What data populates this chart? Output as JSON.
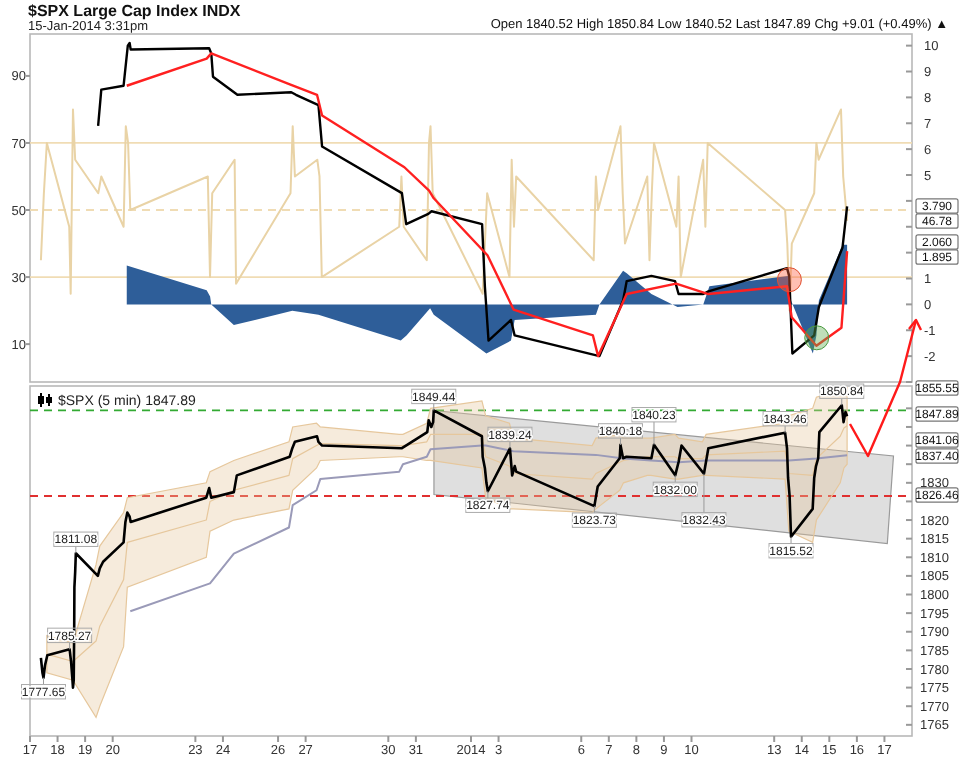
{
  "chart_data": [
    {
      "type": "line",
      "title": "$SPX Large Cap Index INDX",
      "subtitle": "15-Jan-2014 3:31pm",
      "annotations": [
        "Open 1840.52 High 1850.84 Low 1840.52 Last 1847.89 Chg +9.01 (+0.49%) ▲",
        "3.790",
        "46.78",
        "2.060",
        "1.895"
      ],
      "xlim": [
        "2013-12-17",
        "2014-01-18"
      ],
      "ylim": [
        -1.3,
        102.5
      ],
      "yticks": [
        10,
        30,
        50,
        70,
        90
      ],
      "y2lim": [
        -3.0,
        10.45
      ],
      "y2ticks": [
        {
          "value": -3,
          "label": null
        },
        -2,
        -1,
        0,
        1,
        {
          "value": 2,
          "label": null
        },
        {
          "value": 3,
          "label": null
        },
        {
          "value": 4,
          "label": null
        },
        5,
        6,
        7,
        8,
        9,
        10
      ],
      "tick_labels": "y",
      "ref_lines": [
        {
          "axis": "y",
          "value": 70,
          "color": "#f0dcb4"
        },
        {
          "axis": "y",
          "value": 30,
          "color": "#f0dcb4"
        },
        {
          "axis": "y",
          "value": 50,
          "color": "#f0dcb4",
          "line_style": "dashed"
        }
      ],
      "series": [
        {
          "color": "#e9d3a6",
          "x": [
            "2013-12-17T09:30",
            "2013-12-17T12:05",
            "2013-12-17T14:40",
            "2013-12-18T10:10",
            "2013-12-18T11:25",
            "2013-12-18T13:25",
            "2013-12-18T15:20",
            "2013-12-19T11:25",
            "2013-12-19T14:05",
            "2013-12-20T09:30",
            "2013-12-20T11:25",
            "2013-12-20T13:25",
            "2013-12-20T15:20",
            "2013-12-23T10:50",
            "2013-12-23T12:45",
            "2013-12-23T14:40",
            "2013-12-24T10:10",
            "2013-12-24T11:25",
            "2013-12-26T10:50",
            "2013-12-26T12:45",
            "2013-12-26T14:40",
            "2013-12-27T10:10",
            "2013-12-27T12:05",
            "2013-12-27T14:05",
            "2013-12-30T09:30",
            "2013-12-30T11:25",
            "2013-12-30T13:25",
            "2013-12-31T09:30",
            "2013-12-31T11:25",
            "2013-12-31T12:45",
            "2013-12-31T14:40",
            "2014-01-02T10:10",
            "2014-01-02T12:05",
            "2014-01-02T14:05",
            "2014-01-03T09:30",
            "2014-01-03T11:25",
            "2014-01-03T13:25",
            "2014-01-03T15:20",
            "2014-01-06T10:50",
            "2014-01-06T12:45",
            "2014-01-06T14:40",
            "2014-01-07T10:10",
            "2014-01-07T12:05",
            "2014-01-07T14:05",
            "2014-01-08T09:30",
            "2014-01-08T11:25",
            "2014-01-08T13:25",
            "2014-01-08T15:20",
            "2014-01-09T10:50",
            "2014-01-09T12:45",
            "2014-01-09T14:40",
            "2014-01-10T10:10",
            "2014-01-10T12:05",
            "2014-01-10T14:05",
            "2014-01-13T09:30",
            "2014-01-13T11:25",
            "2014-01-13T13:25",
            "2014-01-13T15:20",
            "2014-01-14T10:50",
            "2014-01-14T12:45",
            "2014-01-14T14:40",
            "2014-01-15T10:10",
            "2014-01-15T12:05",
            "2014-01-15T15:30"
          ],
          "values": [
            35,
            55,
            70,
            45,
            25,
            80,
            65,
            55,
            60,
            45,
            75,
            70,
            50,
            60,
            30,
            55,
            65,
            28,
            55,
            75,
            60,
            65,
            60,
            30,
            45,
            60,
            45,
            35,
            70,
            75,
            55,
            25,
            40,
            55,
            30,
            65,
            45,
            60,
            35,
            60,
            50,
            75,
            55,
            40,
            60,
            35,
            55,
            70,
            45,
            60,
            30,
            65,
            45,
            70,
            50,
            40,
            20,
            40,
            55,
            70,
            65,
            80,
            60,
            46.78
          ]
        },
        {
          "type": "area",
          "axis": "y2",
          "color": "#2e5e99",
          "x": [
            "2013-12-20T12:15",
            "2013-12-20T12:15",
            "2013-12-23T09:50",
            "2013-12-23T12:50",
            "2013-12-23T13:50",
            "2013-12-24T09:30",
            "2013-12-26T12:25",
            "2013-12-27T11:10",
            "2013-12-30T10:50",
            "2013-12-30T15:50",
            "2013-12-31T12:25",
            "2013-12-31T15:35",
            "2014-01-02T13:25",
            "2014-01-03T10:50",
            "2014-01-03T14:00",
            "2014-01-06T12:45",
            "2014-01-06T15:50",
            "2014-01-07T12:25",
            "2014-01-07T15:35",
            "2014-01-08T13:05",
            "2014-01-09T11:50",
            "2014-01-10T10:15",
            "2014-01-10T15:35",
            "2014-01-13T12:05",
            "2014-01-13T14:40",
            "2014-01-14T09:40",
            "2014-01-14T12:45",
            "2014-01-14T14:55",
            "2014-01-15T11:30",
            "2014-01-15T15:30"
          ],
          "values": [
            0,
            1.5,
            0.55,
            0.3,
            0,
            -0.8,
            -0.25,
            -0.4,
            -1.4,
            -1.2,
            -0.15,
            -0.4,
            -1.9,
            -1.4,
            -0.6,
            -0.4,
            0,
            1.3,
            1.2,
            0.4,
            -0.1,
            0,
            0.7,
            1.1,
            0.15,
            -1.9,
            -1.2,
            0.15,
            2.3,
            2.3
          ]
        },
        {
          "axis": "y2",
          "color": "#000000",
          "x": [
            "2013-12-19T11:20",
            "2013-12-19T14:05",
            "2013-12-20T09:30",
            "2013-12-20T13:10",
            "2013-12-20T14:45",
            "2013-12-20T15:40",
            "2013-12-23T12:00",
            "2013-12-23T13:50",
            "2013-12-23T15:20",
            "2013-12-24T12:35",
            "2013-12-26T11:30",
            "2013-12-26T15:35",
            "2013-12-27T11:10",
            "2013-12-27T14:20",
            "2013-12-30T11:50",
            "2013-12-30T15:35",
            "2013-12-31T10:50",
            "2013-12-31T13:40",
            "2014-01-02T09:40",
            "2014-01-02T12:05",
            "2014-01-02T15:15",
            "2014-01-03T10:50",
            "2014-01-03T14:00",
            "2014-01-06T15:50",
            "2014-01-07T12:25",
            "2014-01-07T15:35",
            "2014-01-08T13:05",
            "2014-01-09T09:40",
            "2014-01-09T12:45",
            "2014-01-10T10:15",
            "2014-01-10T14:40",
            "2014-01-13T11:10",
            "2014-01-13T13:05",
            "2014-01-13T15:50",
            "2014-01-14T10:50",
            "2014-01-14T14:55",
            "2014-01-15T11:30",
            "2014-01-15T15:30"
          ],
          "values": [
            6.9,
            8.3,
            8.45,
            10.0,
            10.1,
            9.85,
            9.9,
            9.7,
            8.8,
            8.1,
            8.2,
            8.1,
            7.7,
            6.1,
            4.3,
            3.1,
            3.5,
            3.6,
            3.1,
            0.7,
            -1.4,
            -0.6,
            -1.2,
            -2.0,
            0.15,
            0.9,
            1.1,
            0.9,
            0.4,
            0.4,
            0.5,
            1.4,
            1.1,
            -1.9,
            -1.2,
            -0.1,
            2.2,
            3.79
          ]
        },
        {
          "axis": "y2",
          "color": "#ff2020",
          "x": [
            "2013-12-20T12:15",
            "2013-12-23T09:50",
            "2013-12-23T13:50",
            "2013-12-26T10:15",
            "2013-12-27T09:55",
            "2013-12-27T14:20",
            "2013-12-30T14:00",
            "2013-12-31T11:30",
            "2013-12-31T15:35",
            "2014-01-02T14:20",
            "2014-01-03T13:05",
            "2014-01-06T10:10",
            "2014-01-06T14:40",
            "2014-01-07T15:35",
            "2014-01-09T10:35",
            "2014-01-10T14:40",
            "2014-01-13T11:10",
            "2014-01-13T15:15",
            "2014-01-14T12:45",
            "2014-01-15T10:35",
            "2014-01-15T15:30"
          ],
          "values": [
            8.45,
            9.5,
            9.7,
            8.5,
            8.1,
            7.3,
            5.3,
            4.4,
            4.1,
            1.9,
            -0.2,
            -1.2,
            -2.0,
            0.4,
            0.8,
            0.4,
            0.7,
            -0.5,
            -1.6,
            -0.9,
            2.06
          ]
        }
      ]
    },
    {
      "type": "line",
      "legend": "top left",
      "xlim": [
        "2013-12-17",
        "2014-01-18"
      ],
      "ylim": [
        1762,
        1856
      ],
      "xticks": [
        {
          "value": "2013-12-17",
          "label": "17"
        },
        {
          "value": "2013-12-18",
          "label": "18"
        },
        {
          "value": "2013-12-19",
          "label": "19"
        },
        {
          "value": "2013-12-20",
          "label": "20"
        },
        {
          "value": "2013-12-23",
          "label": "23"
        },
        {
          "value": "2013-12-24",
          "label": "24"
        },
        {
          "value": "2013-12-26",
          "label": "26"
        },
        {
          "value": "2013-12-27",
          "label": "27"
        },
        {
          "value": "2013-12-30",
          "label": "30"
        },
        {
          "value": "2013-12-31",
          "label": "31"
        },
        {
          "value": "2014-01-02",
          "label": "2014"
        },
        {
          "value": "2014-01-03",
          "label": "3"
        },
        {
          "value": "2014-01-06",
          "label": "6"
        },
        {
          "value": "2014-01-07",
          "label": "7"
        },
        {
          "value": "2014-01-08",
          "label": "8"
        },
        {
          "value": "2014-01-09",
          "label": "9"
        },
        {
          "value": "2014-01-10",
          "label": "10"
        },
        {
          "value": "2014-01-13",
          "label": "13"
        },
        {
          "value": "2014-01-14",
          "label": "14"
        },
        {
          "value": "2014-01-15",
          "label": "15"
        },
        {
          "value": "2014-01-16",
          "label": "16"
        },
        {
          "value": "2014-01-17",
          "label": "17"
        }
      ],
      "yticks": [
        1765,
        1770,
        1775,
        1780,
        1785,
        1790,
        1795,
        1800,
        1805,
        1810,
        1815,
        1820,
        {
          "value": 1825,
          "label": null
        },
        1830,
        {
          "value": 1835,
          "label": null
        },
        {
          "value": 1840,
          "label": null
        },
        {
          "value": 1845,
          "label": null
        },
        {
          "value": 1850,
          "label": null
        }
      ],
      "ref_lines": [
        {
          "axis": "y",
          "value": 1849.44,
          "color": "#33aa33",
          "line_style": "dashed"
        },
        {
          "axis": "y",
          "value": 1826.46,
          "color": "#e03030",
          "line_style": "dashed"
        }
      ],
      "annotations": [
        {
          "text": "1777.65",
          "x": "2013-12-17T11:45",
          "y": 1777.65
        },
        {
          "text": "1785.27",
          "x": "2013-12-18T10:30",
          "y": 1785.27
        },
        {
          "text": "1811.08",
          "x": "2013-12-18T15:55",
          "y": 1811.08
        },
        {
          "text": "1849.44",
          "x": "2013-12-31T15:35",
          "y": 1849.44
        },
        {
          "text": "1839.24",
          "x": "2014-01-03T09:55",
          "y": 1839.24
        },
        {
          "text": "1827.74",
          "x": "2014-01-02T14:40",
          "y": 1827.74
        },
        {
          "text": "1823.73",
          "x": "2014-01-06T11:25",
          "y": 1823.73
        },
        {
          "text": "1840.18",
          "x": "2014-01-07T10:10",
          "y": 1840.18
        },
        {
          "text": "1840.23",
          "x": "2014-01-08T15:20",
          "y": 1840.23
        },
        {
          "text": "1832.00",
          "x": "2014-01-09T09:50",
          "y": 1832.0
        },
        {
          "text": "1832.43",
          "x": "2014-01-10T10:50",
          "y": 1832.43
        },
        {
          "text": "1843.46",
          "x": "2014-01-13T09:30",
          "y": 1843.46
        },
        {
          "text": "1815.52",
          "x": "2014-01-13T14:40",
          "y": 1815.52
        },
        {
          "text": "1850.84",
          "x": "2014-01-15T10:50",
          "y": 1850.84
        },
        "1855.55",
        "1847.89",
        "1841.06",
        "1837.40",
        "1826.46"
      ],
      "series": [
        {
          "color": "#e6c79c",
          "x": [
            "2013-12-17T14:40",
            "2013-12-18T13:25",
            "2013-12-19T09:30",
            "2013-12-19T12:45",
            "2013-12-20T09:30",
            "2013-12-20T12:45",
            "2013-12-23T09:30",
            "2013-12-23T12:45",
            "2013-12-24T09:30",
            "2013-12-26T09:30",
            "2013-12-26T12:45",
            "2013-12-27T09:30",
            "2013-12-27T12:45",
            "2013-12-30T09:30",
            "2013-12-30T12:45",
            "2013-12-31T09:30",
            "2013-12-31T12:45",
            "2014-01-02T09:30",
            "2014-01-02T12:45",
            "2014-01-03T09:30",
            "2014-01-03T12:45",
            "2014-01-06T09:30",
            "2014-01-06T12:45",
            "2014-01-07T09:30",
            "2014-01-07T12:45",
            "2014-01-08T09:30",
            "2014-01-08T12:45",
            "2014-01-09T09:30",
            "2014-01-09T12:45",
            "2014-01-10T09:30",
            "2014-01-10T12:45",
            "2014-01-13T09:30",
            "2014-01-13T12:45",
            "2014-01-14T09:30",
            "2014-01-14T12:45",
            "2014-01-15T09:30",
            "2014-01-15T12:45",
            "2014-01-15T15:30"
          ],
          "values": [
            1784,
            1782,
            1787.5,
            1791.5,
            1804,
            1814,
            1820,
            1825,
            1828,
            1832,
            1836.5,
            1840,
            1840.5,
            1840,
            1840,
            1841,
            1843,
            1843,
            1837,
            1834.5,
            1832.5,
            1831,
            1832.5,
            1835.5,
            1836,
            1837,
            1837,
            1837,
            1836.5,
            1836.5,
            1837.5,
            1838.5,
            1832.5,
            1832,
            1836.5,
            1842.5,
            1844.7,
            1845.3
          ],
          "lower": [
            1779,
            1777,
            1767,
            1770,
            1786,
            1802,
            1810,
            1817,
            1820,
            1823,
            1828,
            1834,
            1836,
            1837,
            1837,
            1836,
            1836,
            1834,
            1826,
            1823,
            1823,
            1822,
            1823,
            1828,
            1830,
            1832,
            1832,
            1831,
            1831,
            1832,
            1832,
            1831,
            1817,
            1814,
            1820,
            1830,
            1834,
            1835
          ],
          "upper": [
            1789,
            1787,
            1808,
            1813,
            1822,
            1826,
            1830,
            1833,
            1836,
            1841,
            1845,
            1846,
            1845,
            1843,
            1843,
            1846,
            1850,
            1852,
            1848,
            1846,
            1842,
            1840,
            1842,
            1843,
            1842,
            1842,
            1842,
            1843,
            1842,
            1841,
            1843,
            1846,
            1848,
            1850,
            1853,
            1855,
            1855.4,
            1855.55
          ]
        },
        {
          "color": "#9a9ab8",
          "x": [
            "2013-12-20T15:20",
            "2013-12-23T12:45",
            "2013-12-24T09:30",
            "2013-12-26T09:30",
            "2013-12-26T12:45",
            "2013-12-27T09:30",
            "2013-12-27T12:45",
            "2013-12-30T09:30",
            "2013-12-30T12:45",
            "2013-12-31T09:30",
            "2013-12-31T12:45",
            "2014-01-02T09:30",
            "2014-01-02T12:45",
            "2014-01-03T12:45",
            "2014-01-06T12:45",
            "2014-01-07T12:45",
            "2014-01-08T12:45",
            "2014-01-09T12:45",
            "2014-01-10T12:45",
            "2014-01-13T12:45",
            "2014-01-14T12:45",
            "2014-01-15T15:30"
          ],
          "values": [
            1795.5,
            1803,
            1811,
            1818,
            1824,
            1828,
            1831,
            1833,
            1835,
            1837,
            1839,
            1840,
            1840,
            1838.5,
            1837.5,
            1836.5,
            1836,
            1835.5,
            1836,
            1836,
            1836.5,
            1837.4
          ]
        },
        {
          "name": "$SPX (5 min) 1847.89",
          "color": "#000000",
          "x": [
            "2013-12-17T09:30",
            "2013-12-17T10:50",
            "2013-12-17T11:45",
            "2013-12-17T13:05",
            "2013-12-17T15:05",
            "2013-12-18T10:30",
            "2013-12-18T11:45",
            "2013-12-18T12:45",
            "2013-12-18T13:25",
            "2013-12-18T14:05",
            "2013-12-18T14:30",
            "2013-12-18T14:40",
            "2013-12-18T15:20",
            "2013-12-18T15:55",
            "2013-12-19T11:05",
            "2013-12-19T12:45",
            "2013-12-19T15:40",
            "2013-12-20T09:30",
            "2013-12-20T11:05",
            "2013-12-20T12:45",
            "2013-12-20T14:40",
            "2013-12-20T15:40",
            "2013-12-23T09:30",
            "2013-12-23T12:00",
            "2013-12-23T13:50",
            "2013-12-24T09:30",
            "2013-12-24T12:05",
            "2013-12-26T10:10",
            "2013-12-26T12:25",
            "2013-12-26T14:40",
            "2013-12-27T09:55",
            "2013-12-27T11:10",
            "2013-12-27T14:20",
            "2013-12-30T11:50",
            "2013-12-30T15:20",
            "2013-12-31T09:55",
            "2013-12-31T11:10",
            "2013-12-31T13:25",
            "2013-12-31T15:00",
            "2013-12-31T15:35",
            "2014-01-02T09:30",
            "2014-01-02T10:10",
            "2014-01-02T12:05",
            "2014-01-02T13:25",
            "2014-01-02T14:40",
            "2014-01-03T09:55",
            "2014-01-03T11:50",
            "2014-01-03T14:05",
            "2014-01-03T15:20",
            "2014-01-06T11:25",
            "2014-01-06T14:20",
            "2014-01-07T09:30",
            "2014-01-07T10:10",
            "2014-01-07T12:25",
            "2014-01-07T15:20",
            "2014-01-08T13:05",
            "2014-01-08T15:20",
            "2014-01-09T09:50",
            "2014-01-09T12:45",
            "2014-01-09T15:20",
            "2014-01-10T10:50",
            "2014-01-10T14:40",
            "2014-01-13T09:30",
            "2014-01-13T11:10",
            "2014-01-13T12:05",
            "2014-01-13T13:25",
            "2014-01-13T14:40",
            "2014-01-14T09:30",
            "2014-01-14T10:50",
            "2014-01-14T12:25",
            "2014-01-14T14:20",
            "2014-01-14T15:20",
            "2014-01-15T10:50",
            "2014-01-15T12:25",
            "2014-01-15T14:05",
            "2014-01-15T15:30"
          ],
          "values": [
            1783,
            1779,
            1777.65,
            1781,
            1783.7,
            1785.27,
            1782,
            1778,
            1775,
            1777,
            1791,
            1802,
            1806,
            1811.08,
            1805,
            1807,
            1808.8,
            1814,
            1819.5,
            1822,
            1821,
            1819.5,
            1826,
            1828.6,
            1826,
            1827.5,
            1832,
            1837,
            1839.3,
            1841,
            1842.5,
            1841,
            1840,
            1839.3,
            1840,
            1843.6,
            1846.8,
            1845,
            1846.3,
            1849.44,
            1842.5,
            1837,
            1834,
            1830,
            1827.74,
            1839.24,
            1832,
            1834.5,
            1833,
            1823.73,
            1829,
            1836.6,
            1840.18,
            1836.6,
            1837,
            1836.6,
            1840.23,
            1832,
            1835.6,
            1840,
            1832.43,
            1839.3,
            1843.46,
            1839.3,
            1831.3,
            1826.5,
            1815.52,
            1823,
            1831.3,
            1834.5,
            1836.6,
            1843.6,
            1850.84,
            1846.3,
            1849,
            1847.89
          ]
        }
      ]
    }
  ]
}
